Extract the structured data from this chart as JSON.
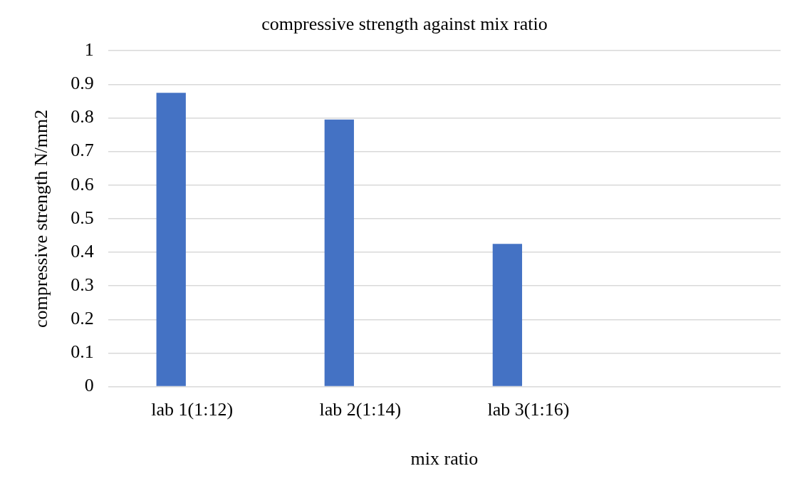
{
  "chart_data": {
    "type": "bar",
    "title": "compressive strength against mix ratio",
    "xlabel": "mix ratio",
    "ylabel": "compressive strength N/mm2",
    "categories": [
      "lab 1(1:12)",
      "lab 2(1:14)",
      "lab 3(1:16)",
      null
    ],
    "values": [
      0.875,
      0.795,
      0.425,
      null
    ],
    "color": "#4472c4",
    "ylim": [
      0,
      1
    ],
    "yticks": [
      0,
      0.1,
      0.2,
      0.3,
      0.4,
      0.5,
      0.6,
      0.7,
      0.8,
      0.9,
      1
    ],
    "grid": "y",
    "legend": false
  }
}
